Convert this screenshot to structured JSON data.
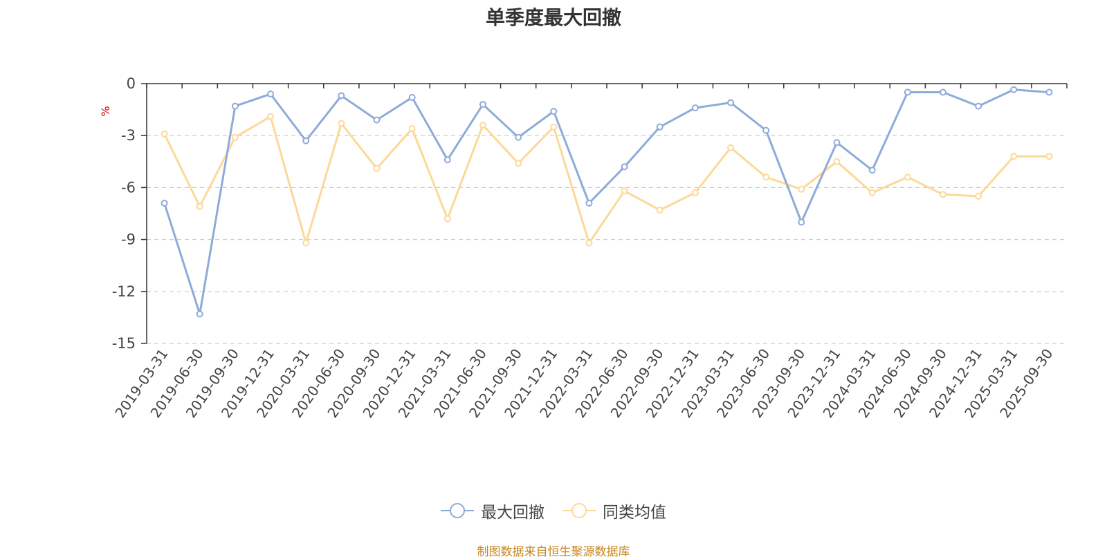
{
  "chart_data": {
    "type": "line",
    "title": "单季度最大回撤",
    "ylabel": "%",
    "ylim": [
      -15,
      0
    ],
    "yticks": [
      0,
      -3,
      -6,
      -9,
      -12,
      -15
    ],
    "grid": true,
    "legend_position": "bottom",
    "categories": [
      "2019-03-31",
      "2019-06-30",
      "2019-09-30",
      "2019-12-31",
      "2020-03-31",
      "2020-06-30",
      "2020-09-30",
      "2020-12-31",
      "2021-03-31",
      "2021-06-30",
      "2021-09-30",
      "2021-12-31",
      "2022-03-31",
      "2022-06-30",
      "2022-09-30",
      "2022-12-31",
      "2023-03-31",
      "2023-06-30",
      "2023-09-30",
      "2023-12-31",
      "2024-03-31",
      "2024-06-30",
      "2024-09-30",
      "2024-12-31",
      "2025-03-31",
      "2025-09-30"
    ],
    "series": [
      {
        "name": "最大回撤",
        "color": "#8eabd8",
        "values": [
          -6.9,
          -13.3,
          -1.3,
          -0.6,
          -3.3,
          -0.7,
          -2.1,
          -0.8,
          -4.4,
          -1.2,
          -3.1,
          -1.6,
          -6.9,
          -4.8,
          -2.5,
          -1.4,
          -1.1,
          -2.7,
          -8.0,
          -3.4,
          -5.0,
          -0.5,
          -0.5,
          -1.3,
          -0.35,
          -0.5
        ]
      },
      {
        "name": "同类均值",
        "color": "#fcd998",
        "values": [
          -2.9,
          -7.1,
          -3.1,
          -1.9,
          -9.2,
          -2.3,
          -4.9,
          -2.6,
          -7.8,
          -2.4,
          -4.6,
          -2.5,
          -9.2,
          -6.2,
          -7.3,
          -6.3,
          -3.7,
          -5.4,
          -6.1,
          -4.5,
          -6.3,
          -5.4,
          -6.4,
          -6.5,
          -4.2,
          -4.2
        ]
      }
    ]
  },
  "source_text": "制图数据来自恒生聚源数据库"
}
